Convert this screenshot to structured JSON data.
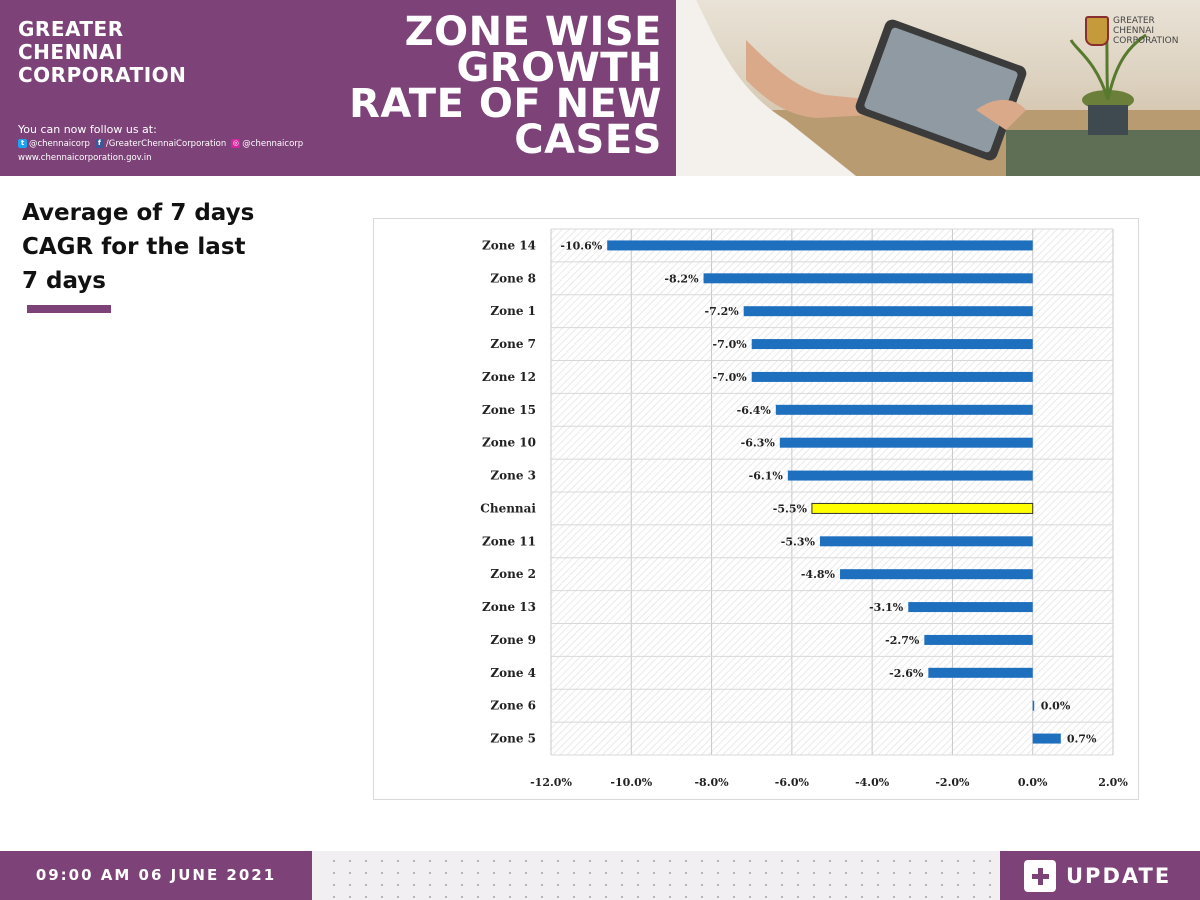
{
  "header": {
    "org_lines": [
      "GREATER",
      "CHENNAI",
      "CORPORATION"
    ],
    "follow_text": "You can now follow us at:",
    "twitter": "@chennaicorp",
    "facebook": "/GreaterChennaiCorporation",
    "instagram": "@chennaicorp",
    "website": "www.chennaicorporation.gov.in",
    "title_lines": [
      "ZONE WISE",
      "GROWTH",
      "RATE OF NEW",
      "CASES"
    ],
    "logo_lines": [
      "GREATER",
      "CHENNAI",
      "CORPORATION"
    ]
  },
  "subtitle_lines": [
    "Average of 7 days",
    "CAGR for the last",
    "7 days"
  ],
  "footer": {
    "datetime": "09:00 AM 06 JUNE 2021",
    "update_label": "UPDATE"
  },
  "colors": {
    "brand": "#7d4278",
    "bar": "#1f6fbf",
    "highlight": "#ffff00"
  },
  "chart_data": {
    "type": "bar",
    "orientation": "horizontal",
    "categories": [
      "Zone 14",
      "Zone 8",
      "Zone 1",
      "Zone 7",
      "Zone 12",
      "Zone 15",
      "Zone 10",
      "Zone 3",
      "Chennai",
      "Zone 11",
      "Zone 2",
      "Zone 13",
      "Zone 9",
      "Zone 4",
      "Zone 6",
      "Zone 5"
    ],
    "values": [
      -10.6,
      -8.2,
      -7.2,
      -7.0,
      -7.0,
      -6.4,
      -6.3,
      -6.1,
      -5.5,
      -5.3,
      -4.8,
      -3.1,
      -2.7,
      -2.6,
      0.0,
      0.7
    ],
    "data_labels": [
      "-10.6%",
      "-8.2%",
      "-7.2%",
      "-7.0%",
      "-7.0%",
      "-6.4%",
      "-6.3%",
      "-6.1%",
      "-5.5%",
      "-5.3%",
      "-4.8%",
      "-3.1%",
      "-2.7%",
      "-2.6%",
      "0.0%",
      "0.7%"
    ],
    "highlight": "Chennai",
    "xlim": [
      -12.0,
      2.0
    ],
    "xticks": [
      -12,
      -10,
      -8,
      -6,
      -4,
      -2,
      0,
      2
    ],
    "xtick_labels": [
      "-12.0%",
      "-10.0%",
      "-8.0%",
      "-6.0%",
      "-4.0%",
      "-2.0%",
      "0.0%",
      "2.0%"
    ],
    "gridlines": true
  }
}
